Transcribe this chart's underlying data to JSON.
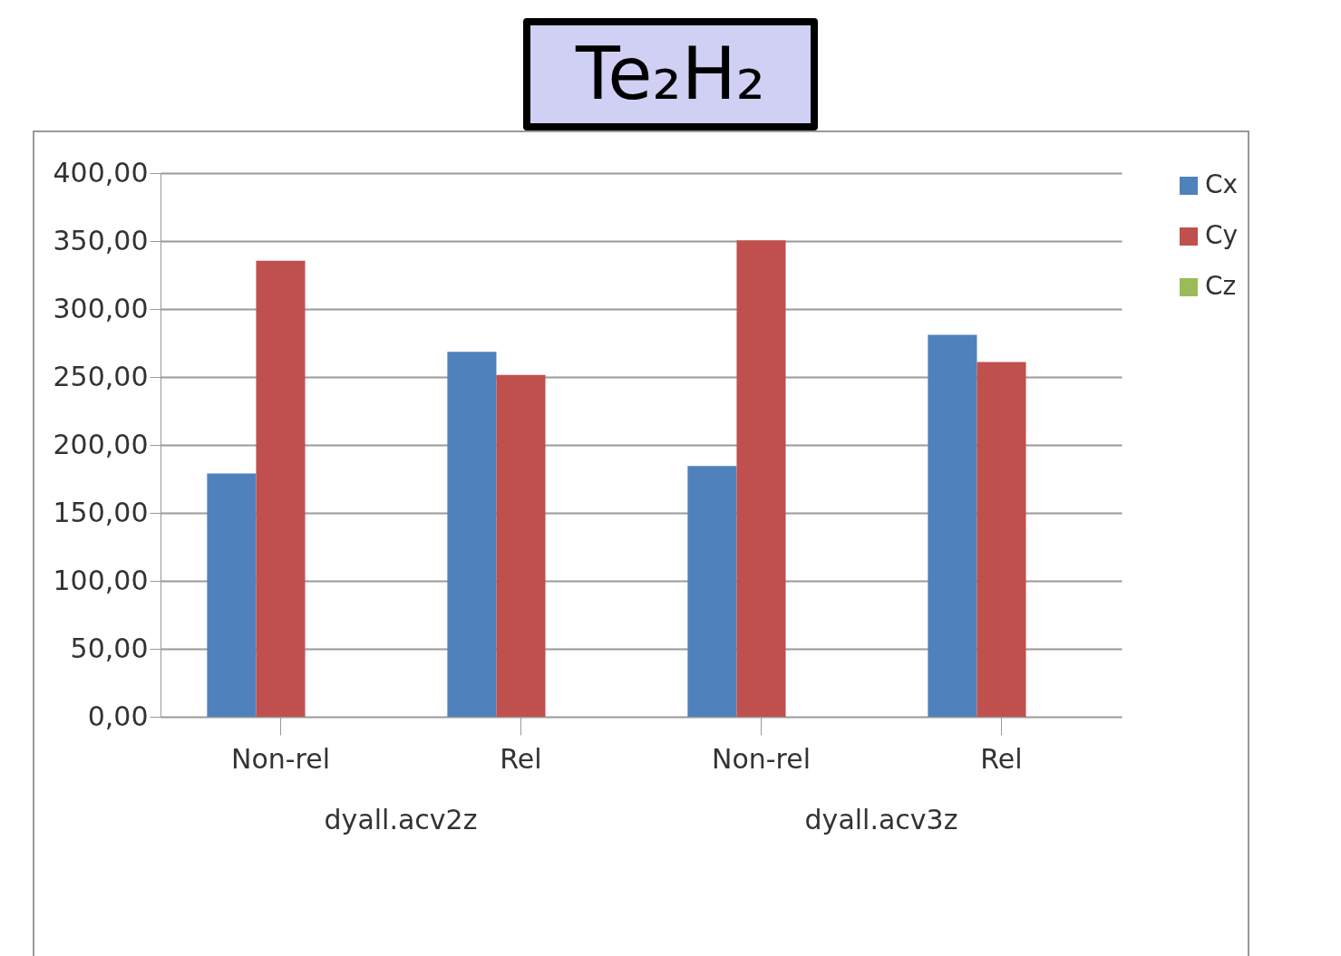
{
  "chart_data": {
    "type": "bar",
    "title": "Te₂H₂",
    "categories": [
      "Non-rel",
      "Rel",
      "Non-rel",
      "Rel"
    ],
    "series": [
      {
        "name": "Cx",
        "color": "#4f81bd",
        "values": [
          179,
          268.5,
          184.5,
          281
        ]
      },
      {
        "name": "Cy",
        "color": "#c0504d",
        "values": [
          335.5,
          251.5,
          350.5,
          261
        ]
      },
      {
        "name": "Cz",
        "color": "#9bbb59",
        "values": [
          null,
          null,
          null,
          null
        ]
      }
    ],
    "ylim": [
      0,
      400
    ],
    "yticks": [
      {
        "value": 0,
        "label": "0,00"
      },
      {
        "value": 50,
        "label": "50,00"
      },
      {
        "value": 100,
        "label": "100,00"
      },
      {
        "value": 150,
        "label": "150,00"
      },
      {
        "value": 200,
        "label": "200,00"
      },
      {
        "value": 250,
        "label": "250,00"
      },
      {
        "value": 300,
        "label": "300,00"
      },
      {
        "value": 350,
        "label": "350,00"
      },
      {
        "value": 400,
        "label": "400,00"
      }
    ],
    "grid": "y",
    "legend": "right",
    "annotations": [
      "dyall.acv2z",
      "dyall.acv3z"
    ]
  }
}
